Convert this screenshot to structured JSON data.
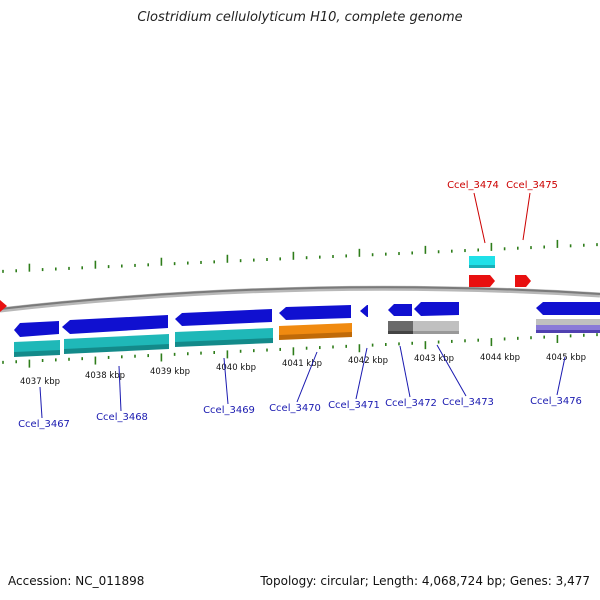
{
  "title": "Clostridium cellulolyticum H10, complete genome",
  "footer": {
    "accession": "Accession: NC_011898",
    "summary": "Topology: circular; Length: 4,068,724 bp; Genes: 3,477"
  },
  "colors": {
    "backbone": "#808080",
    "tick": "#2e7d1a",
    "label_blue": "#1a1ab0",
    "label_red": "#cc0000",
    "gene_blue": "#1010d0",
    "gene_cyan": "#1fb8b8",
    "gene_orange": "#f08a10",
    "gene_gray_dark": "#6a6a6a",
    "gene_gray_light": "#c0c0c0",
    "gene_red": "#e81010",
    "gene_cyan_light": "#20e0e8",
    "gene_lavender": "#8a7ad8"
  },
  "scale_labels": [
    "4037 kbp",
    "4038 kbp",
    "4039 kbp",
    "4040 kbp",
    "4041 kbp",
    "4042 kbp",
    "4043 kbp",
    "4044 kbp",
    "4045 kbp"
  ],
  "gene_labels": [
    {
      "name": "Ccel_3467",
      "strand": "minus"
    },
    {
      "name": "Ccel_3468",
      "strand": "minus"
    },
    {
      "name": "Ccel_3469",
      "strand": "minus"
    },
    {
      "name": "Ccel_3470",
      "strand": "minus"
    },
    {
      "name": "Ccel_3471",
      "strand": "minus"
    },
    {
      "name": "Ccel_3472",
      "strand": "minus"
    },
    {
      "name": "Ccel_3473",
      "strand": "minus"
    },
    {
      "name": "Ccel_3474",
      "strand": "plus"
    },
    {
      "name": "Ccel_3475",
      "strand": "plus"
    },
    {
      "name": "Ccel_3476",
      "strand": "minus"
    }
  ]
}
